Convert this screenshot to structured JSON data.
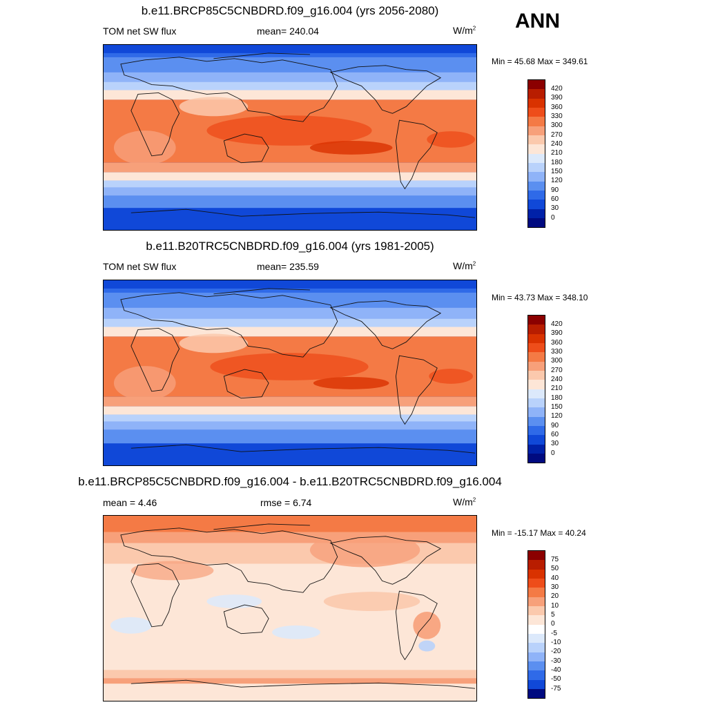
{
  "season": "ANN",
  "panels": [
    {
      "title": "b.e11.BRCP85C5CNBDRD.f09_g16.004 (yrs 2056-2080)",
      "left": "TOM net SW flux",
      "center": "mean= 240.04",
      "units_base": "W/m",
      "units_sup": "2",
      "minmax": "Min =  45.68 Max = 349.61"
    },
    {
      "title": "b.e11.B20TRC5CNBDRD.f09_g16.004 (yrs 1981-2005)",
      "left": "TOM net SW flux",
      "center": "mean= 235.59",
      "units_base": "W/m",
      "units_sup": "2",
      "minmax": "Min =  43.73 Max = 348.10"
    },
    {
      "title": "b.e11.BRCP85C5CNBDRD.f09_g16.004 - b.e11.B20TRC5CNBDRD.f09_g16.004",
      "left": "mean =   4.46",
      "center": "rmse =   6.74",
      "units_base": "W/m",
      "units_sup": "2",
      "minmax": "Min = -15.17 Max =  40.24"
    }
  ],
  "colorbar_abs": {
    "labels": [
      "420",
      "390",
      "360",
      "330",
      "300",
      "270",
      "240",
      "210",
      "180",
      "150",
      "120",
      "90",
      "60",
      "30",
      "0"
    ],
    "colors": [
      "#8b0000",
      "#b81d00",
      "#d93200",
      "#ee4d1a",
      "#f47a45",
      "#f7a07a",
      "#fbc9ad",
      "#fde6d7",
      "#dce9fb",
      "#b9d2fb",
      "#8fb3f8",
      "#5b8ff0",
      "#2f6ae8",
      "#1048d8",
      "#0021a8",
      "#000a80"
    ]
  },
  "colorbar_diff": {
    "labels": [
      "75",
      "50",
      "40",
      "30",
      "20",
      "10",
      "5",
      "0",
      "-5",
      "-10",
      "-20",
      "-30",
      "-40",
      "-50",
      "-75"
    ],
    "colors": [
      "#8b0000",
      "#b81d00",
      "#d93200",
      "#ee4d1a",
      "#f47a45",
      "#f7a07a",
      "#fbc9ad",
      "#fde6d7",
      "#ffffff",
      "#dce9fb",
      "#b9d2fb",
      "#8fb3f8",
      "#5b8ff0",
      "#2f6ae8",
      "#1048d8",
      "#000a80"
    ]
  }
}
